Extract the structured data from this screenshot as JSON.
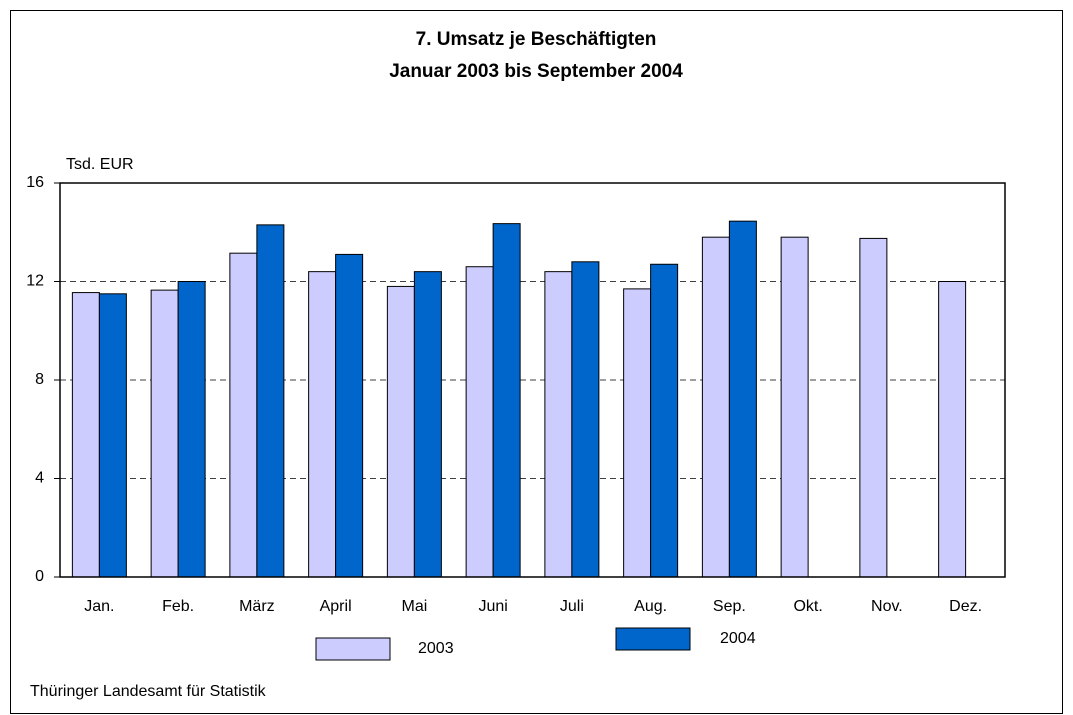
{
  "chart_data": {
    "type": "bar",
    "title": "7. Umsatz je Beschäftigten",
    "subtitle": "Januar 2003 bis September 2004",
    "y_label": "Tsd. EUR",
    "source": "Thüringer Landesamt für Statistik",
    "categories": [
      "Jan.",
      "Feb.",
      "März",
      "April",
      "Mai",
      "Juni",
      "Juli",
      "Aug.",
      "Sep.",
      "Okt.",
      "Nov.",
      "Dez."
    ],
    "series": [
      {
        "name": "2003",
        "color": "#ccccff",
        "values": [
          11.55,
          11.65,
          13.15,
          12.4,
          11.8,
          12.6,
          12.4,
          11.7,
          13.8,
          13.8,
          13.75,
          12.0
        ]
      },
      {
        "name": "2004",
        "color": "#0066cc",
        "values": [
          11.5,
          12.0,
          14.3,
          13.1,
          12.4,
          14.35,
          12.8,
          12.7,
          14.45,
          null,
          null,
          null
        ]
      }
    ],
    "ylim": [
      0,
      16
    ],
    "yticks": [
      0,
      4,
      8,
      12,
      16
    ],
    "grid": true
  }
}
